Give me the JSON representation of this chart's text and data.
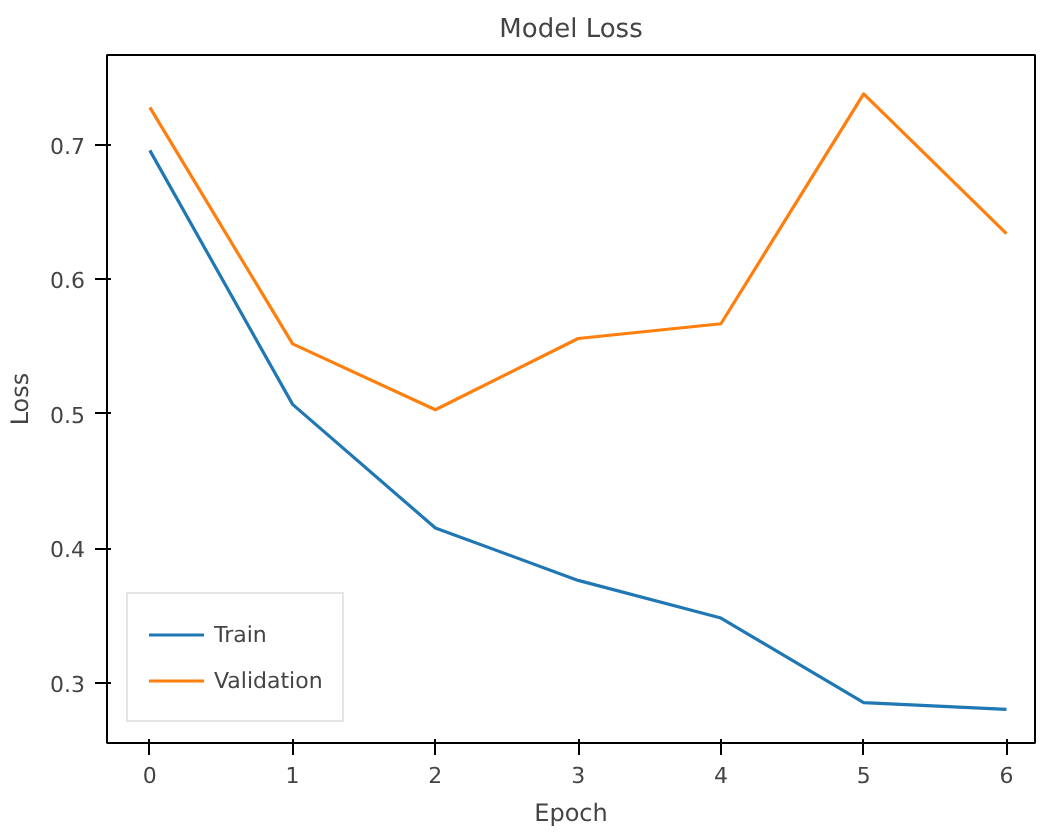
{
  "chart_data": {
    "type": "line",
    "title": "Model Loss",
    "xlabel": "Epoch",
    "ylabel": "Loss",
    "x": [
      0,
      1,
      2,
      3,
      4,
      5,
      6
    ],
    "series": [
      {
        "name": "Train",
        "color": "#1f77b4",
        "values": [
          0.696,
          0.507,
          0.415,
          0.376,
          0.348,
          0.285,
          0.28
        ]
      },
      {
        "name": "Validation",
        "color": "#ff7f0e",
        "values": [
          0.728,
          0.552,
          0.503,
          0.556,
          0.567,
          0.738,
          0.634
        ]
      }
    ],
    "xlim": [
      -0.3,
      6.2
    ],
    "ylim": [
      0.255,
      0.767
    ],
    "xticks": [
      0,
      1,
      2,
      3,
      4,
      5,
      6
    ],
    "yticks": [
      0.3,
      0.4,
      0.5,
      0.6,
      0.7
    ],
    "grid": false,
    "legend": "bottom left",
    "marker": "none",
    "line_style": "solid"
  }
}
